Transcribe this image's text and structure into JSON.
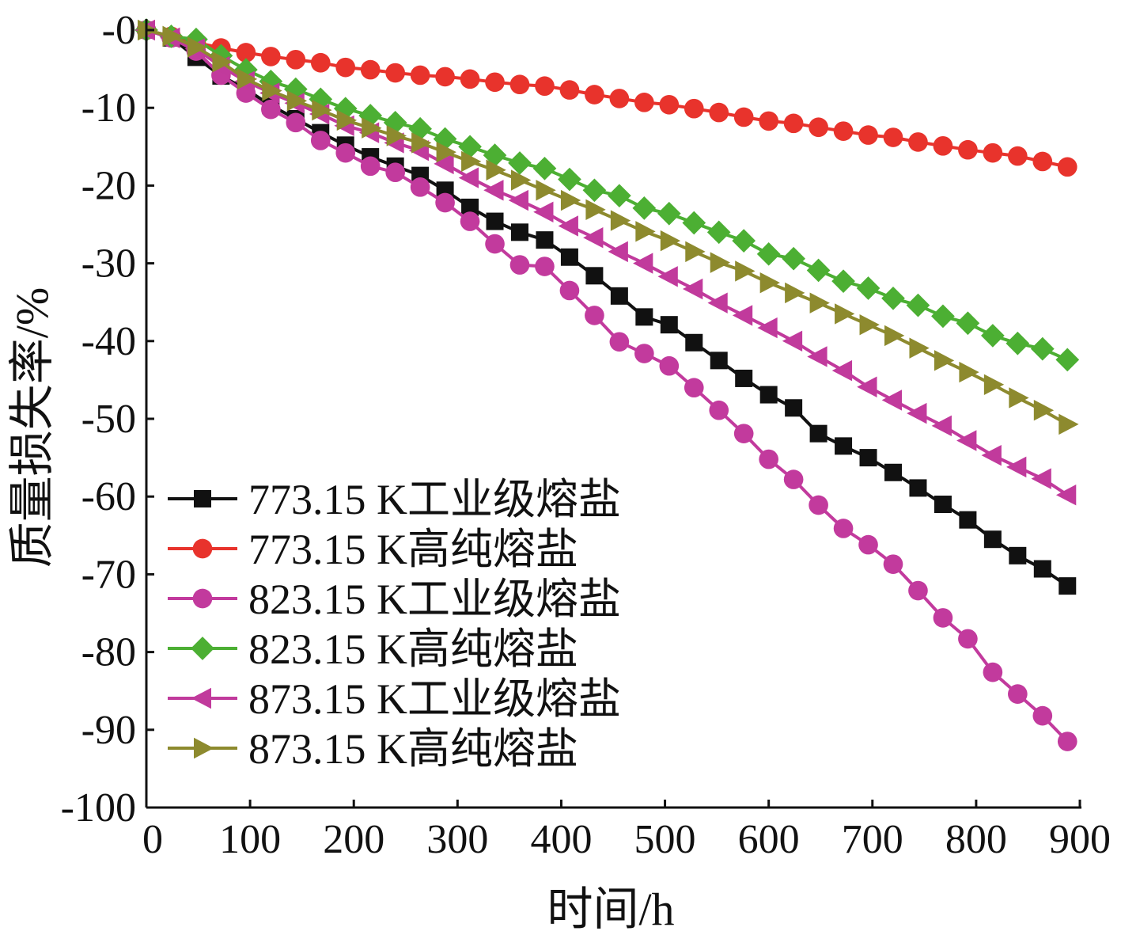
{
  "chart_data": {
    "type": "line",
    "xlabel": "时间/h",
    "ylabel": "质量损失率/%",
    "xlim": [
      0,
      900
    ],
    "ylim": [
      -100,
      0
    ],
    "x_ticks": [
      0,
      100,
      200,
      300,
      400,
      500,
      600,
      700,
      800,
      900
    ],
    "y_ticks": [
      0,
      -10,
      -20,
      -30,
      -40,
      -50,
      -60,
      -70,
      -80,
      -90,
      -100
    ],
    "y_tick_labels": [
      "-0",
      "-10",
      "-20",
      "-30",
      "-40",
      "-50",
      "-60",
      "-70",
      "-80",
      "-90",
      "-100"
    ],
    "grid": false,
    "legend_position": "lower-left",
    "axis_color": "#111111",
    "x": [
      0,
      24,
      48,
      72,
      96,
      120,
      144,
      168,
      192,
      216,
      240,
      264,
      288,
      312,
      336,
      360,
      384,
      408,
      432,
      456,
      480,
      504,
      528,
      552,
      576,
      600,
      624,
      648,
      672,
      696,
      720,
      744,
      768,
      792,
      816,
      840,
      864,
      888
    ],
    "series": [
      {
        "name": "773.15 K工业级熔盐",
        "color": "#111111",
        "marker": "square",
        "values": [
          0,
          -1.0,
          -3.5,
          -5.9,
          -7.6,
          -9.7,
          -11.4,
          -13.2,
          -14.8,
          -16.3,
          -17.5,
          -18.7,
          -20.6,
          -22.8,
          -24.6,
          -26.0,
          -27.0,
          -29.2,
          -31.6,
          -34.2,
          -36.9,
          -37.9,
          -40.2,
          -42.5,
          -44.8,
          -46.9,
          -48.6,
          -51.9,
          -53.5,
          -55.0,
          -56.9,
          -58.9,
          -61.0,
          -63.0,
          -65.5,
          -67.6,
          -69.3,
          -71.5
        ]
      },
      {
        "name": "773.15 K高纯熔盐",
        "color": "#e8332c",
        "marker": "circle",
        "values": [
          0,
          -0.8,
          -1.6,
          -2.3,
          -2.9,
          -3.4,
          -3.8,
          -4.2,
          -4.8,
          -5.1,
          -5.5,
          -5.8,
          -6.0,
          -6.3,
          -6.7,
          -7.0,
          -7.2,
          -7.7,
          -8.3,
          -8.8,
          -9.3,
          -9.6,
          -10.1,
          -10.6,
          -11.2,
          -11.7,
          -12.0,
          -12.5,
          -13.0,
          -13.5,
          -13.8,
          -14.4,
          -14.9,
          -15.4,
          -15.8,
          -16.2,
          -16.9,
          -17.6
        ]
      },
      {
        "name": "823.15 K工业级熔盐",
        "color": "#c23a9d",
        "marker": "circle",
        "values": [
          0,
          -1.0,
          -2.7,
          -5.8,
          -8.1,
          -10.2,
          -11.9,
          -14.2,
          -15.8,
          -17.5,
          -18.3,
          -20.2,
          -22.2,
          -24.6,
          -27.5,
          -30.2,
          -30.4,
          -33.5,
          -36.7,
          -40.1,
          -41.6,
          -43.2,
          -46.0,
          -48.9,
          -51.9,
          -55.2,
          -57.8,
          -61.1,
          -64.1,
          -66.2,
          -68.7,
          -72.1,
          -75.6,
          -78.3,
          -82.6,
          -85.4,
          -88.2,
          -91.5
        ]
      },
      {
        "name": "823.15 K高纯熔盐",
        "color": "#4caf33",
        "marker": "diamond",
        "values": [
          0,
          -0.8,
          -1.2,
          -3.3,
          -5.1,
          -6.6,
          -7.6,
          -8.9,
          -10.1,
          -11.0,
          -11.9,
          -12.7,
          -14.0,
          -15.0,
          -16.1,
          -17.1,
          -17.8,
          -19.2,
          -20.6,
          -21.3,
          -22.9,
          -23.6,
          -24.8,
          -26.0,
          -27.1,
          -28.8,
          -29.4,
          -30.9,
          -32.3,
          -33.2,
          -34.5,
          -35.4,
          -36.8,
          -37.7,
          -39.3,
          -40.3,
          -41.0,
          -42.4
        ]
      },
      {
        "name": "873.15 K工业级熔盐",
        "color": "#c13a9c",
        "marker": "triangle-left",
        "values": [
          0,
          -1.0,
          -2.4,
          -4.7,
          -6.6,
          -8.1,
          -9.4,
          -10.8,
          -12.3,
          -13.2,
          -14.5,
          -15.5,
          -17.2,
          -19.0,
          -20.6,
          -21.9,
          -23.4,
          -25.2,
          -26.7,
          -28.5,
          -30.0,
          -31.7,
          -33.3,
          -35.1,
          -36.7,
          -38.3,
          -40.0,
          -42.0,
          -43.8,
          -45.9,
          -47.6,
          -49.3,
          -50.9,
          -52.8,
          -54.7,
          -56.2,
          -57.7,
          -59.8
        ]
      },
      {
        "name": "873.15 K高纯熔盐",
        "color": "#8d8a2e",
        "marker": "triangle-right",
        "values": [
          0,
          -0.8,
          -2.2,
          -4.1,
          -6.3,
          -7.8,
          -9.1,
          -10.3,
          -11.6,
          -12.6,
          -13.6,
          -14.5,
          -15.7,
          -16.9,
          -18.0,
          -19.3,
          -20.6,
          -21.9,
          -23.1,
          -24.5,
          -25.9,
          -27.1,
          -28.5,
          -29.9,
          -31.0,
          -32.5,
          -33.8,
          -35.1,
          -36.5,
          -37.9,
          -39.3,
          -40.9,
          -42.5,
          -44.0,
          -45.6,
          -47.3,
          -48.9,
          -50.7
        ]
      }
    ]
  }
}
